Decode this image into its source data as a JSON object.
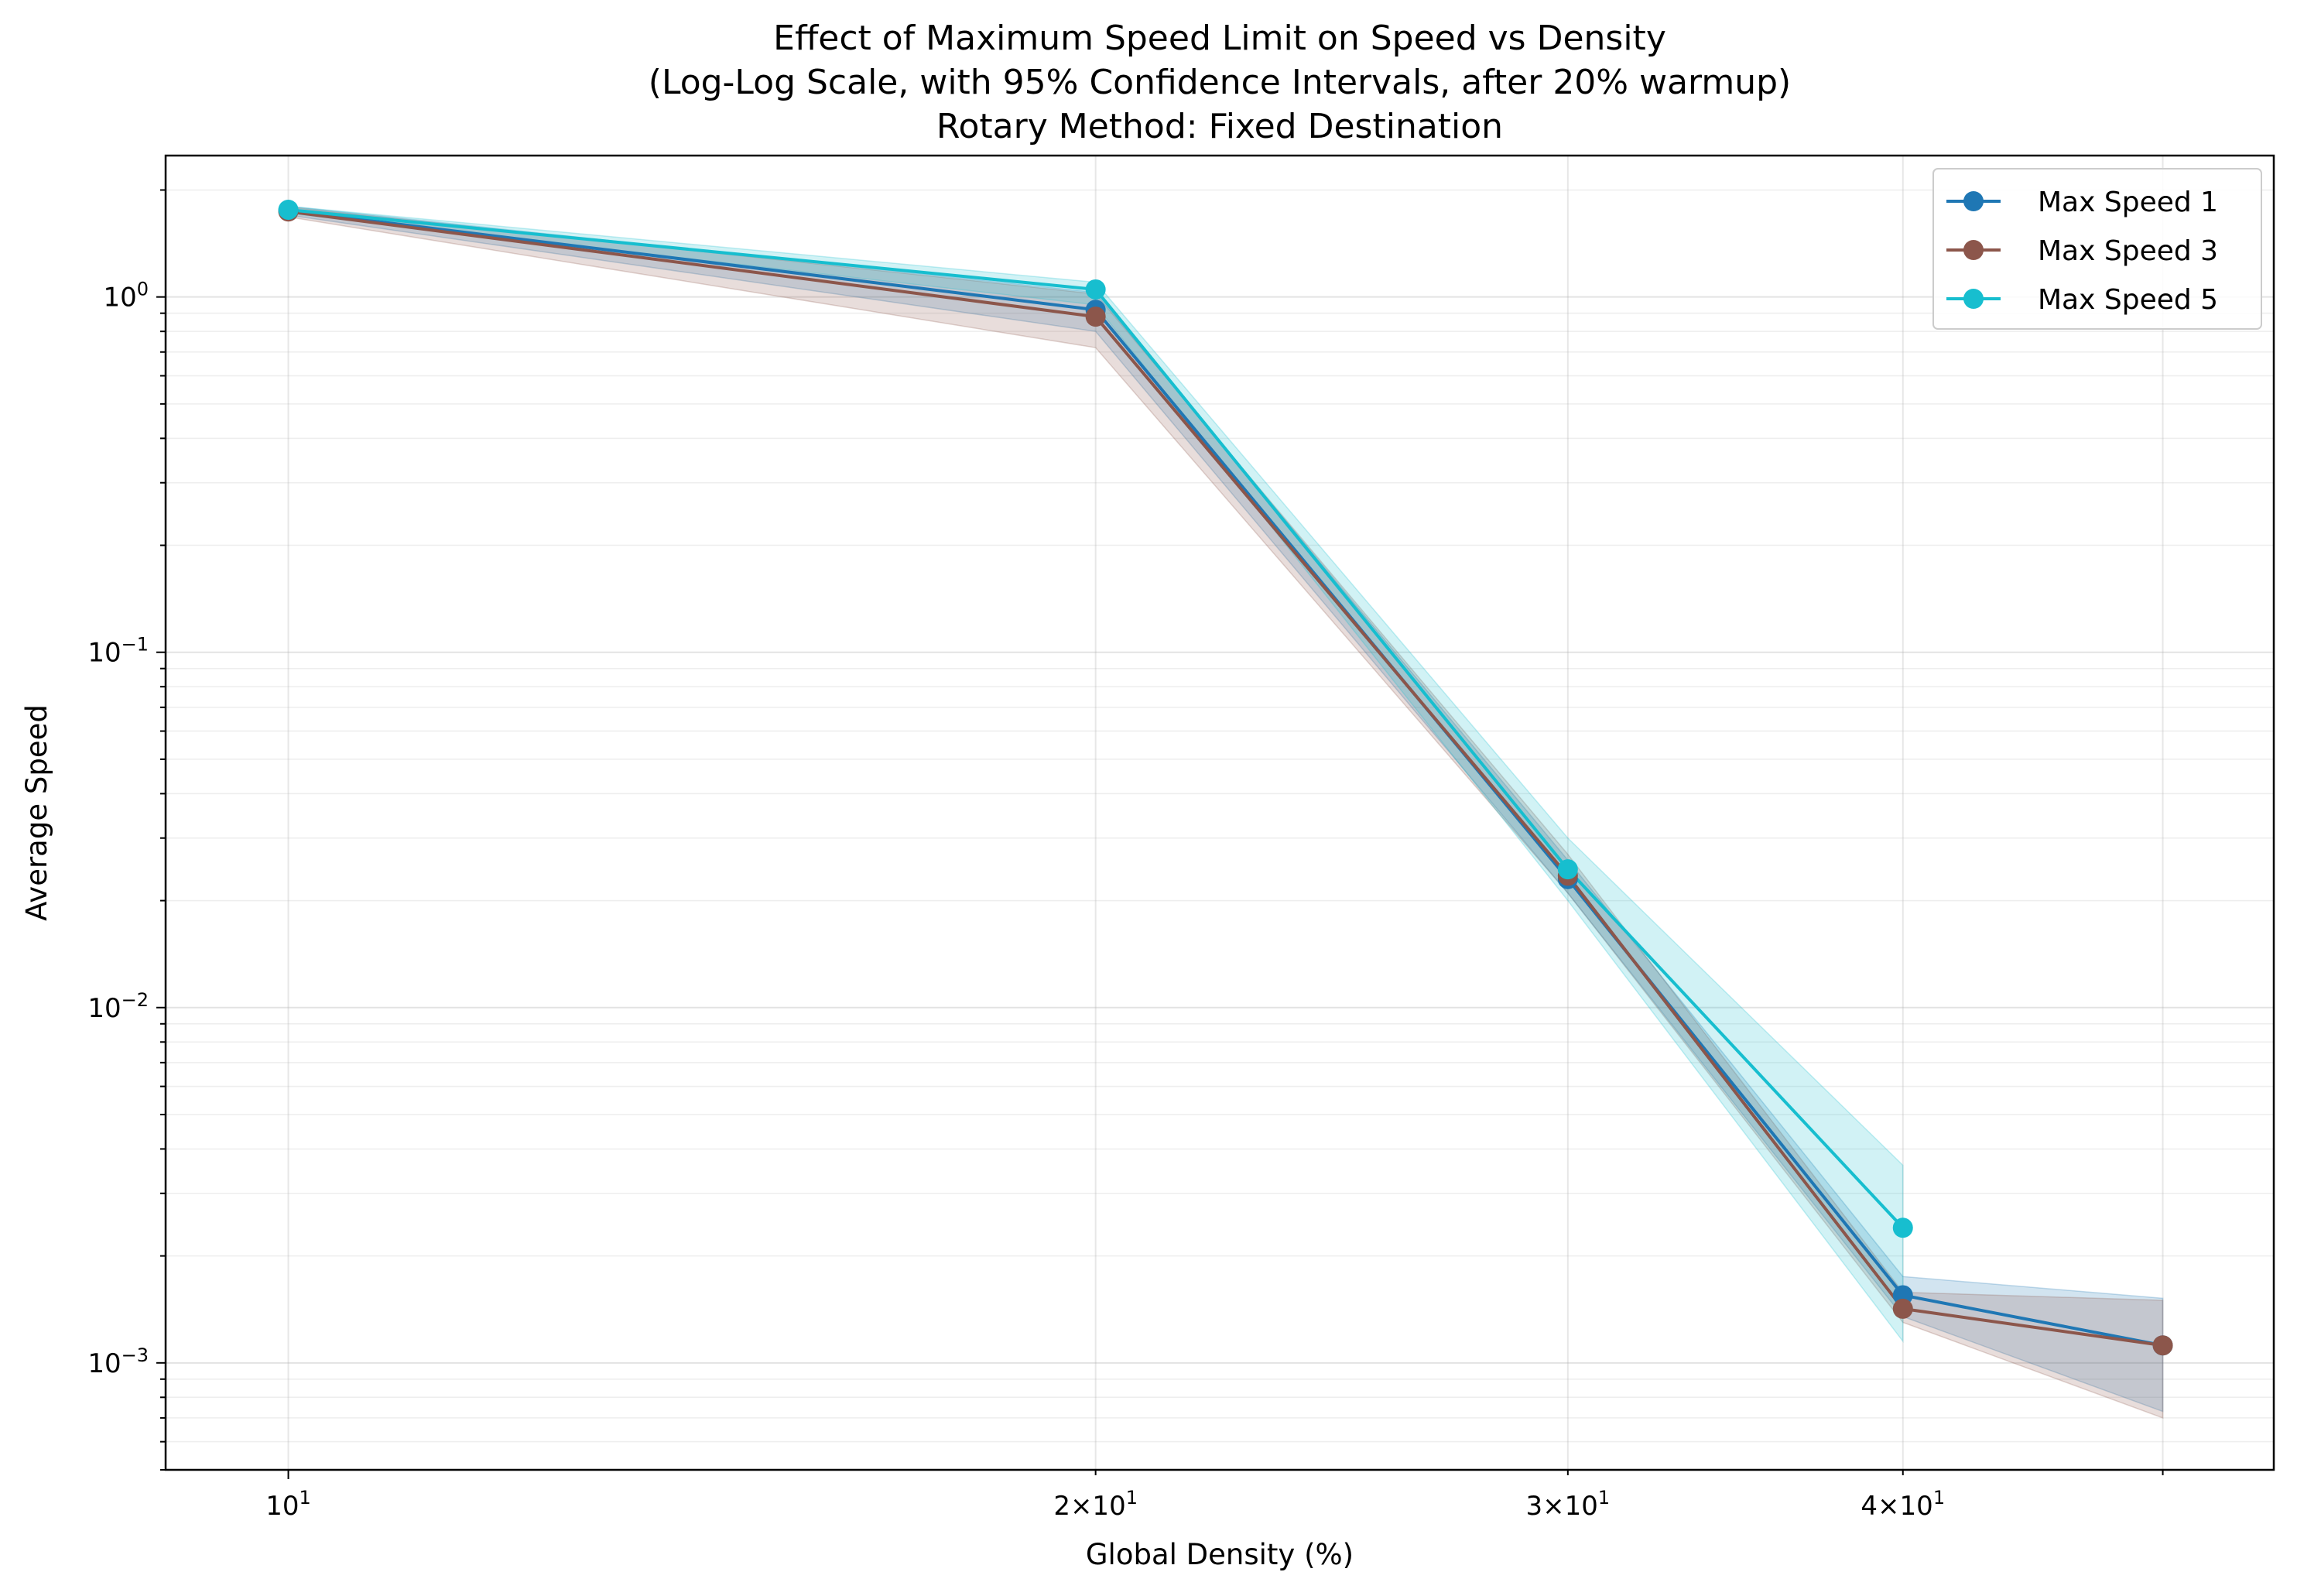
{
  "chart_data": {
    "type": "line",
    "title_lines": [
      "Effect of Maximum Speed Limit on Speed vs Density",
      "(Log-Log Scale, with 95% Confidence Intervals, after 20% warmup)",
      "Rotary Method: Fixed Destination"
    ],
    "xlabel": "Global Density (%)",
    "ylabel": "Average Speed",
    "xscale": "log",
    "yscale": "log",
    "xlim": [
      9.0,
      55.0
    ],
    "ylim": [
      0.0005,
      2.5
    ],
    "grid": true,
    "legend_position": "top-right",
    "x_ticks": [
      {
        "value": 10,
        "mant": "",
        "exp": "1"
      },
      {
        "value": 20,
        "mant": "2×",
        "exp": "1"
      },
      {
        "value": 30,
        "mant": "3×",
        "exp": "1"
      },
      {
        "value": 40,
        "mant": "4×",
        "exp": "1"
      }
    ],
    "y_ticks": [
      {
        "value": 1,
        "exp": "0"
      },
      {
        "value": 0.1,
        "exp": "−1"
      },
      {
        "value": 0.01,
        "exp": "−2"
      },
      {
        "value": 0.001,
        "exp": "−3"
      }
    ],
    "series": [
      {
        "name": "Max Speed 1",
        "color": "#1f77b4",
        "x": [
          10,
          20,
          30,
          40,
          50
        ],
        "y": [
          1.75,
          0.92,
          0.023,
          0.00155,
          0.00112
        ],
        "ci_low": [
          1.7,
          0.8,
          0.021,
          0.00135,
          0.00073
        ],
        "ci_high": [
          1.8,
          1.03,
          0.026,
          0.00175,
          0.00152
        ]
      },
      {
        "name": "Max Speed 3",
        "color": "#8c564b",
        "x": [
          10,
          20,
          30,
          40,
          50
        ],
        "y": [
          1.74,
          0.88,
          0.0235,
          0.00142,
          0.00112
        ],
        "ci_low": [
          1.68,
          0.72,
          0.021,
          0.0013,
          0.0007
        ],
        "ci_high": [
          1.79,
          1.02,
          0.027,
          0.00158,
          0.0015
        ]
      },
      {
        "name": "Max Speed 5",
        "color": "#17becf",
        "x": [
          10,
          20,
          30,
          40
        ],
        "y": [
          1.76,
          1.05,
          0.0245,
          0.0024
        ],
        "ci_low": [
          1.72,
          0.95,
          0.02,
          0.00115
        ],
        "ci_high": [
          1.8,
          1.1,
          0.03,
          0.0036
        ]
      }
    ]
  }
}
